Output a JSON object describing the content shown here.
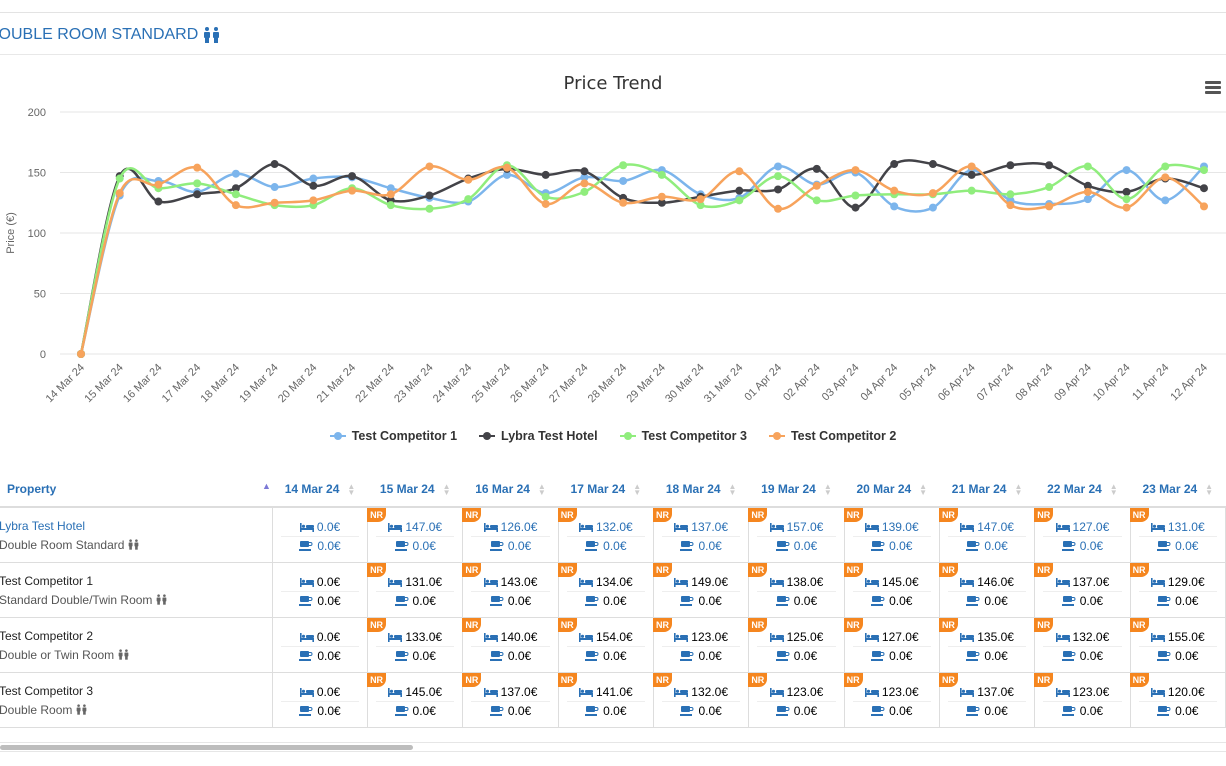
{
  "room": {
    "title": "DOUBLE ROOM STANDARD",
    "icon": "two-persons-icon"
  },
  "chart_data": {
    "type": "line",
    "title": "Price Trend",
    "ylabel": "Price (€)",
    "xlabel": "",
    "ylim": [
      0,
      200
    ],
    "yticks": [
      0,
      50,
      100,
      150,
      200
    ],
    "grid": true,
    "legend_position": "bottom",
    "categories": [
      "14 Mar 24",
      "15 Mar 24",
      "16 Mar 24",
      "17 Mar 24",
      "18 Mar 24",
      "19 Mar 24",
      "20 Mar 24",
      "21 Mar 24",
      "22 Mar 24",
      "23 Mar 24",
      "24 Mar 24",
      "25 Mar 24",
      "26 Mar 24",
      "27 Mar 24",
      "28 Mar 24",
      "29 Mar 24",
      "30 Mar 24",
      "31 Mar 24",
      "01 Apr 24",
      "02 Apr 24",
      "03 Apr 24",
      "04 Apr 24",
      "05 Apr 24",
      "06 Apr 24",
      "07 Apr 24",
      "08 Apr 24",
      "09 Apr 24",
      "10 Apr 24",
      "11 Apr 24",
      "12 Apr 24"
    ],
    "series": [
      {
        "name": "Test Competitor 1",
        "color": "#7cb5ec",
        "values": [
          0,
          131,
          143,
          134,
          149,
          138,
          145,
          146,
          137,
          129,
          126,
          148,
          133,
          146,
          143,
          152,
          132,
          129,
          155,
          140,
          150,
          122,
          121,
          152,
          127,
          124,
          128,
          152,
          127,
          155
        ]
      },
      {
        "name": "Lybra Test Hotel",
        "color": "#434348",
        "values": [
          0,
          147,
          126,
          132,
          137,
          157,
          139,
          147,
          127,
          131,
          145,
          153,
          148,
          151,
          129,
          125,
          130,
          135,
          136,
          153,
          121,
          157,
          157,
          148,
          156,
          156,
          139,
          134,
          145,
          137
        ]
      },
      {
        "name": "Test Competitor 3",
        "color": "#90ed7d",
        "values": [
          0,
          145,
          137,
          141,
          132,
          123,
          123,
          137,
          123,
          120,
          128,
          156,
          130,
          134,
          156,
          148,
          123,
          127,
          147,
          127,
          131,
          132,
          132,
          135,
          132,
          138,
          155,
          128,
          155,
          152
        ]
      },
      {
        "name": "Test Competitor 2",
        "color": "#f7a35c",
        "values": [
          0,
          133,
          140,
          154,
          123,
          125,
          127,
          135,
          132,
          155,
          144,
          154,
          124,
          141,
          125,
          130,
          128,
          151,
          120,
          139,
          152,
          135,
          133,
          155,
          123,
          122,
          134,
          121,
          146,
          122
        ]
      }
    ]
  },
  "table": {
    "property_header": "Property",
    "dates": [
      "14 Mar 24",
      "15 Mar 24",
      "16 Mar 24",
      "17 Mar 24",
      "18 Mar 24",
      "19 Mar 24",
      "20 Mar 24",
      "21 Mar 24",
      "22 Mar 24",
      "23 Mar 24"
    ],
    "nr_label": "NR",
    "rows": [
      {
        "property": "Lybra Test Hotel",
        "room": "Double Room Standard",
        "own": true,
        "nr": [
          false,
          true,
          true,
          true,
          true,
          true,
          true,
          true,
          true,
          true
        ],
        "prices": [
          "0.0€",
          "147.0€",
          "126.0€",
          "132.0€",
          "137.0€",
          "157.0€",
          "139.0€",
          "147.0€",
          "127.0€",
          "131.0€"
        ],
        "breakfast": [
          "0.0€",
          "0.0€",
          "0.0€",
          "0.0€",
          "0.0€",
          "0.0€",
          "0.0€",
          "0.0€",
          "0.0€",
          "0.0€"
        ]
      },
      {
        "property": "Test Competitor 1",
        "room": "Standard Double/Twin Room",
        "own": false,
        "nr": [
          false,
          true,
          true,
          true,
          true,
          true,
          true,
          true,
          true,
          true
        ],
        "prices": [
          "0.0€",
          "131.0€",
          "143.0€",
          "134.0€",
          "149.0€",
          "138.0€",
          "145.0€",
          "146.0€",
          "137.0€",
          "129.0€"
        ],
        "breakfast": [
          "0.0€",
          "0.0€",
          "0.0€",
          "0.0€",
          "0.0€",
          "0.0€",
          "0.0€",
          "0.0€",
          "0.0€",
          "0.0€"
        ]
      },
      {
        "property": "Test Competitor 2",
        "room": "Double or Twin Room",
        "own": false,
        "nr": [
          false,
          true,
          true,
          true,
          true,
          true,
          true,
          true,
          true,
          true
        ],
        "prices": [
          "0.0€",
          "133.0€",
          "140.0€",
          "154.0€",
          "123.0€",
          "125.0€",
          "127.0€",
          "135.0€",
          "132.0€",
          "155.0€"
        ],
        "breakfast": [
          "0.0€",
          "0.0€",
          "0.0€",
          "0.0€",
          "0.0€",
          "0.0€",
          "0.0€",
          "0.0€",
          "0.0€",
          "0.0€"
        ]
      },
      {
        "property": "Test Competitor 3",
        "room": "Double Room",
        "own": false,
        "nr": [
          false,
          true,
          true,
          true,
          true,
          true,
          true,
          true,
          true,
          true
        ],
        "prices": [
          "0.0€",
          "145.0€",
          "137.0€",
          "141.0€",
          "132.0€",
          "123.0€",
          "123.0€",
          "137.0€",
          "123.0€",
          "120.0€"
        ],
        "breakfast": [
          "0.0€",
          "0.0€",
          "0.0€",
          "0.0€",
          "0.0€",
          "0.0€",
          "0.0€",
          "0.0€",
          "0.0€",
          "0.0€"
        ]
      }
    ]
  }
}
